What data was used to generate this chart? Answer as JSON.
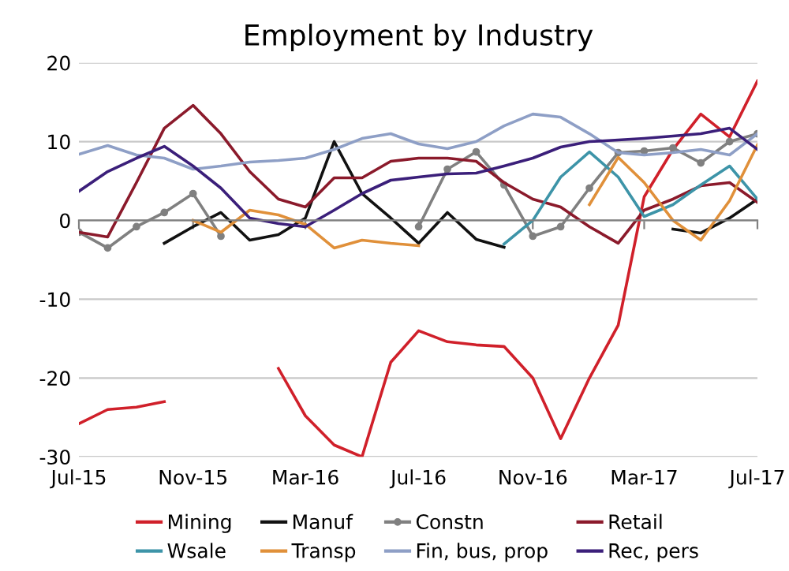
{
  "chart_data": {
    "type": "line",
    "title": "Employment by Industry",
    "x": [
      "2015-07",
      "2015-08",
      "2015-09",
      "2015-10",
      "2015-11",
      "2015-12",
      "2016-01",
      "2016-02",
      "2016-03",
      "2016-04",
      "2016-05",
      "2016-06",
      "2016-07",
      "2016-08",
      "2016-09",
      "2016-10",
      "2016-11",
      "2016-12",
      "2017-01",
      "2017-02",
      "2017-03",
      "2017-04",
      "2017-05",
      "2017-06",
      "2017-07"
    ],
    "series": [
      {
        "name": "Mining",
        "color": "#d0202a",
        "values": [
          -25.8,
          -24,
          -23.7,
          -23,
          null,
          null,
          null,
          -18.8,
          -24.8,
          -28.5,
          -30,
          -18,
          -14,
          -15.4,
          -15.8,
          -16,
          -20,
          -27.7,
          -20,
          -13.3,
          3,
          9,
          13.5,
          10.6,
          17.7
        ]
      },
      {
        "name": "Manuf",
        "color": "#111111",
        "values": [
          null,
          null,
          null,
          -2.9,
          -0.8,
          1,
          -2.5,
          -1.8,
          0.3,
          10,
          3.4,
          0.3,
          -2.9,
          1,
          -2.4,
          -3.4,
          null,
          null,
          null,
          null,
          null,
          -1.1,
          -1.6,
          0.3,
          2.7
        ]
      },
      {
        "name": "Constn",
        "color": "#808080",
        "marker": "circle",
        "values": [
          -1.5,
          -3.5,
          -0.8,
          1,
          3.4,
          -2,
          null,
          null,
          null,
          null,
          null,
          null,
          -0.8,
          6.5,
          8.7,
          4.5,
          -2,
          -0.8,
          4.1,
          8.6,
          8.8,
          9.2,
          7.3,
          10,
          11
        ]
      },
      {
        "name": "Retail",
        "color": "#8b1a2b",
        "values": [
          -1.5,
          -2.1,
          4.8,
          11.7,
          14.6,
          11,
          6.2,
          2.7,
          1.7,
          5.4,
          5.4,
          7.5,
          7.9,
          7.9,
          7.5,
          4.8,
          2.7,
          1.7,
          -0.8,
          -2.9,
          1.3,
          2.7,
          4.4,
          4.8,
          2.3
        ]
      },
      {
        "name": "Wsale",
        "color": "#3d94a8",
        "values": [
          null,
          null,
          null,
          null,
          null,
          null,
          null,
          null,
          null,
          null,
          null,
          null,
          null,
          null,
          null,
          -3,
          0,
          5.5,
          8.7,
          5.5,
          0.5,
          2,
          4.5,
          6.9,
          2.7
        ]
      },
      {
        "name": "Transp",
        "color": "#e0903a",
        "values": [
          null,
          null,
          null,
          null,
          0,
          -1.5,
          1.3,
          0.7,
          -0.5,
          -3.5,
          -2.5,
          -2.9,
          -3.2,
          null,
          null,
          null,
          null,
          null,
          2,
          8,
          4.8,
          0,
          -2.5,
          2.5,
          9.6
        ]
      },
      {
        "name": "Fin, bus, prop",
        "color": "#8e9fc6",
        "values": [
          8.4,
          9.5,
          8.3,
          7.9,
          6.5,
          6.9,
          7.4,
          7.6,
          7.9,
          9,
          10.4,
          11,
          9.7,
          9.1,
          10,
          12,
          13.5,
          13.1,
          11,
          8.6,
          8.3,
          8.6,
          9,
          8.3,
          11
        ]
      },
      {
        "name": "Rec, pers",
        "color": "#3b1f7a",
        "values": [
          3.7,
          6.2,
          7.9,
          9.4,
          6.9,
          4.1,
          0.3,
          -0.4,
          -0.8,
          1.3,
          3.4,
          5.1,
          5.5,
          5.9,
          6,
          6.9,
          7.9,
          9.3,
          10,
          10.2,
          10.4,
          10.7,
          11,
          11.7,
          9
        ]
      }
    ],
    "xlim": [
      "2015-07",
      "2017-07"
    ],
    "xticks": [
      {
        "value": "2015-07",
        "label": "Jul-15"
      },
      {
        "value": "2015-11",
        "label": "Nov-15"
      },
      {
        "value": "2016-03",
        "label": "Mar-16"
      },
      {
        "value": "2016-07",
        "label": "Jul-16"
      },
      {
        "value": "2016-11",
        "label": "Nov-16"
      },
      {
        "value": "2017-03",
        "label": "Mar-17"
      },
      {
        "value": "2017-07",
        "label": "Jul-17"
      }
    ],
    "ylim": [
      -30,
      20
    ],
    "yticks": [
      -30,
      -20,
      -10,
      0,
      10,
      20
    ],
    "grid": "y",
    "legend": "bottom"
  }
}
